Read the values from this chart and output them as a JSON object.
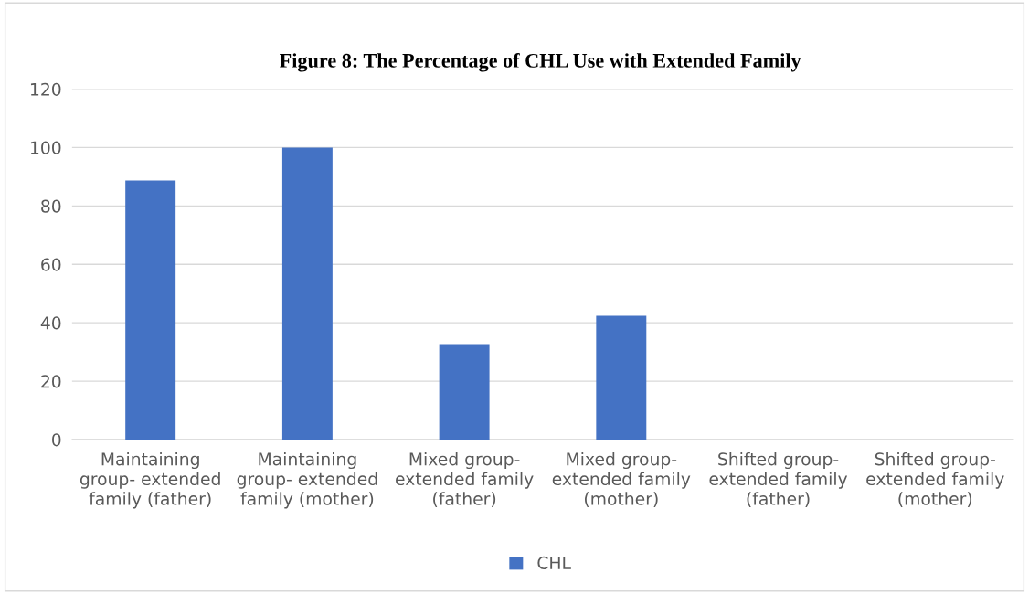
{
  "chart_data": {
    "type": "bar",
    "title": "Figure 8: The Percentage of CHL Use with Extended Family",
    "categories": [
      "Maintaining\ngroup- extended\nfamily (father)",
      "Maintaining\ngroup- extended\nfamily (mother)",
      "Mixed group-\nextended family\n(father)",
      "Mixed group-\nextended family\n(mother)",
      "Shifted group-\nextended family\n(father)",
      "Shifted group-\nextended family\n(mother)"
    ],
    "series": [
      {
        "name": "CHL",
        "color": "#4472c4",
        "values": [
          88.7,
          100,
          32.7,
          42.4,
          0,
          0
        ]
      }
    ],
    "ylim": [
      0,
      120
    ],
    "yticks": [
      0,
      20,
      40,
      60,
      80,
      100,
      120
    ],
    "grid": "y",
    "legend": "bottom"
  }
}
